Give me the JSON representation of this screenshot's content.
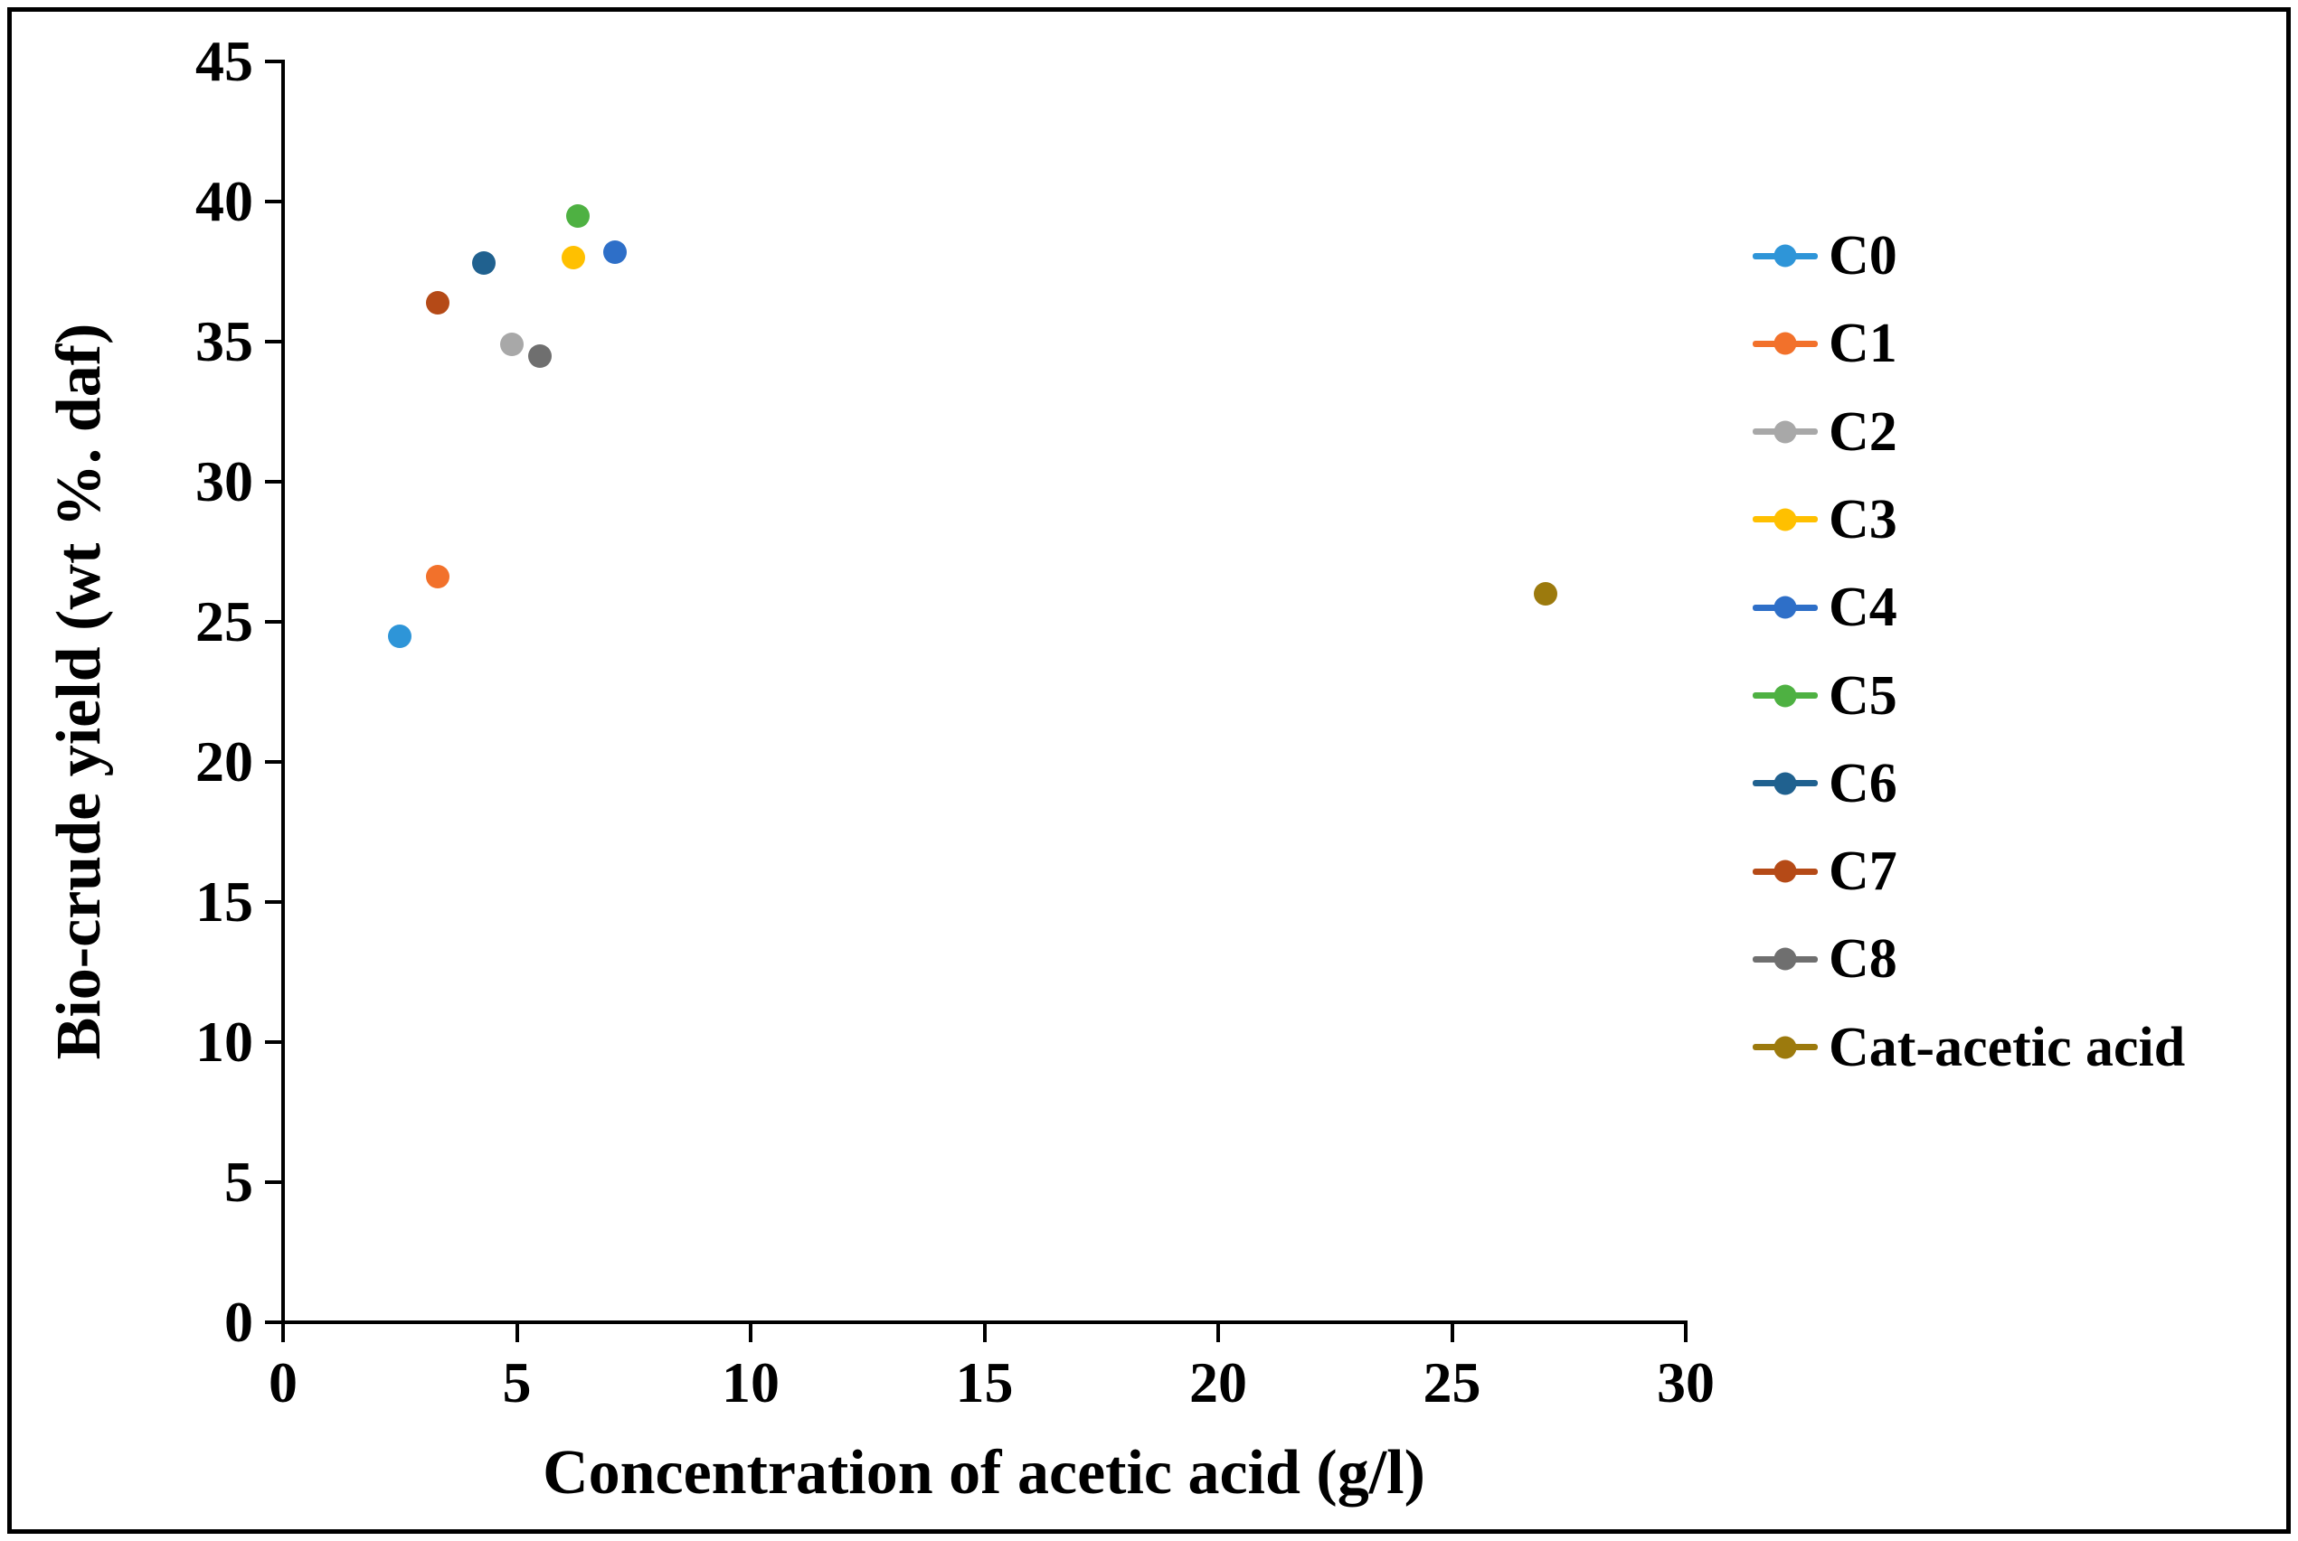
{
  "chart_data": {
    "type": "scatter",
    "title": "",
    "xlabel": "Concentration of acetic acid (g/l)",
    "ylabel": "Bio-crude yield (wt %. daf)",
    "xlim": [
      0,
      30
    ],
    "ylim": [
      0,
      45
    ],
    "x_ticks": [
      0,
      5,
      10,
      15,
      20,
      25,
      30
    ],
    "y_ticks": [
      0,
      5,
      10,
      15,
      20,
      25,
      30,
      35,
      40,
      45
    ],
    "grid": false,
    "legend_position": "right",
    "marker": "circle",
    "series": [
      {
        "name": "C0",
        "color": "#2E95D8",
        "points": [
          [
            2.5,
            24.5
          ]
        ]
      },
      {
        "name": "C1",
        "color": "#F2712B",
        "points": [
          [
            3.3,
            26.6
          ]
        ]
      },
      {
        "name": "C2",
        "color": "#A8A8A8",
        "points": [
          [
            4.9,
            34.9
          ]
        ]
      },
      {
        "name": "C3",
        "color": "#FFC000",
        "points": [
          [
            6.2,
            38.0
          ]
        ]
      },
      {
        "name": "C4",
        "color": "#2E6FC8",
        "points": [
          [
            7.1,
            38.2
          ]
        ]
      },
      {
        "name": "C5",
        "color": "#4EB142",
        "points": [
          [
            6.3,
            39.5
          ]
        ]
      },
      {
        "name": "C6",
        "color": "#20618F",
        "points": [
          [
            4.3,
            37.8
          ]
        ]
      },
      {
        "name": "C7",
        "color": "#B54A17",
        "points": [
          [
            3.3,
            36.4
          ]
        ]
      },
      {
        "name": "C8",
        "color": "#6F6F6F",
        "points": [
          [
            5.5,
            34.5
          ]
        ]
      },
      {
        "name": "Cat-acetic acid",
        "color": "#9C7A0D",
        "points": [
          [
            27.0,
            26.0
          ]
        ]
      }
    ]
  }
}
